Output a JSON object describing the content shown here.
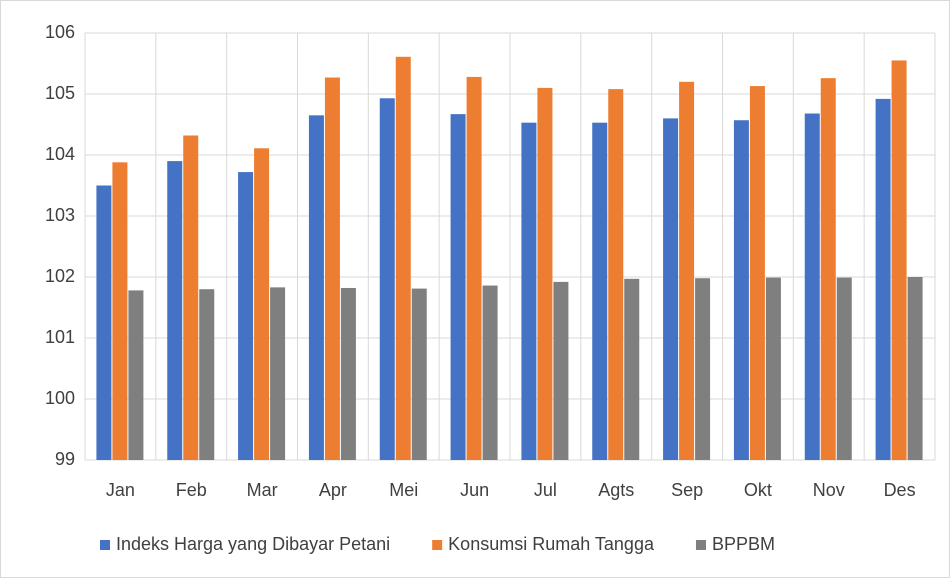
{
  "chart_data": {
    "type": "bar",
    "categories": [
      "Jan",
      "Feb",
      "Mar",
      "Apr",
      "Mei",
      "Jun",
      "Jul",
      "Agts",
      "Sep",
      "Okt",
      "Nov",
      "Des"
    ],
    "series": [
      {
        "name": "Indeks Harga yang Dibayar Petani",
        "color": "#4472c4",
        "values": [
          103.5,
          103.9,
          103.72,
          104.65,
          104.93,
          104.67,
          104.53,
          104.53,
          104.6,
          104.57,
          104.68,
          104.92
        ]
      },
      {
        "name": "Konsumsi Rumah Tangga",
        "color": "#ed7d31",
        "values": [
          103.88,
          104.32,
          104.11,
          105.27,
          105.61,
          105.28,
          105.1,
          105.08,
          105.2,
          105.13,
          105.26,
          105.55
        ]
      },
      {
        "name": "BPPBM",
        "color": "#7f7f7f",
        "values": [
          101.78,
          101.8,
          101.83,
          101.82,
          101.81,
          101.86,
          101.92,
          101.97,
          101.98,
          101.99,
          101.99,
          102.0
        ]
      }
    ],
    "ylim": [
      99,
      106
    ],
    "yticks": [
      99,
      100,
      101,
      102,
      103,
      104,
      105,
      106
    ],
    "grid": true,
    "legend": "bottom"
  }
}
